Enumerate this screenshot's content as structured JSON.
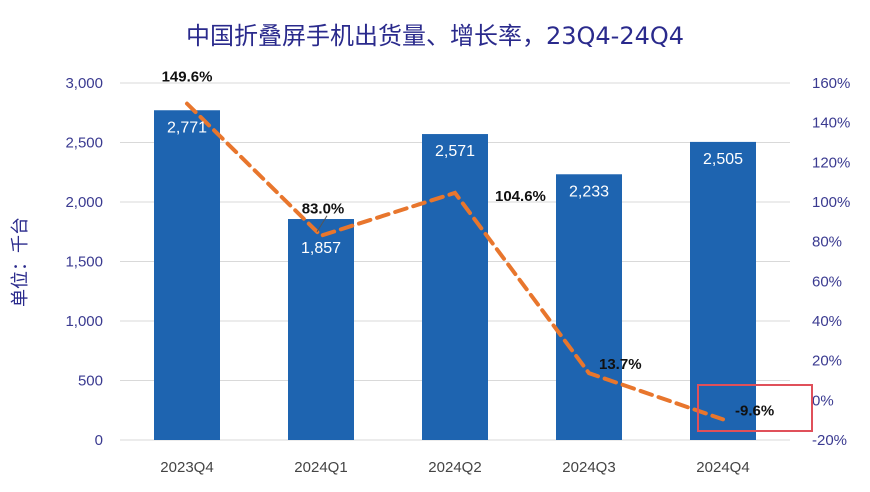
{
  "chart_data": {
    "type": "bar",
    "title": "中国折叠屏手机出货量、增长率，23Q4-24Q4",
    "ylabel": "单位：千台",
    "categories": [
      "2023Q4",
      "2024Q1",
      "2024Q2",
      "2024Q3",
      "2024Q4"
    ],
    "series": [
      {
        "values": [
          2771,
          1857,
          2571,
          2233,
          2505
        ],
        "labels": [
          "2,771",
          "1,857",
          "2,571",
          "2,233",
          "2,505"
        ]
      },
      {
        "type": "line",
        "values": [
          149.6,
          83.0,
          104.6,
          13.7,
          -9.6
        ],
        "labels": [
          "149.6%",
          "83.0%",
          "104.6%",
          "13.7%",
          "-9.6%"
        ]
      }
    ],
    "ylim": [
      0,
      3000
    ],
    "yticks": [
      "0",
      "500",
      "1,000",
      "1,500",
      "2,000",
      "2,500",
      "3,000"
    ],
    "y2lim": [
      -20,
      160
    ],
    "y2ticks": [
      "-20%",
      "0%",
      "20%",
      "40%",
      "60%",
      "80%",
      "100%",
      "120%",
      "140%",
      "160%"
    ],
    "grid": true,
    "colors": {
      "bar": "#1e64b0",
      "line": "#e8762d",
      "highlight_box": "#e0505a",
      "title": "#2a2a8c"
    }
  }
}
